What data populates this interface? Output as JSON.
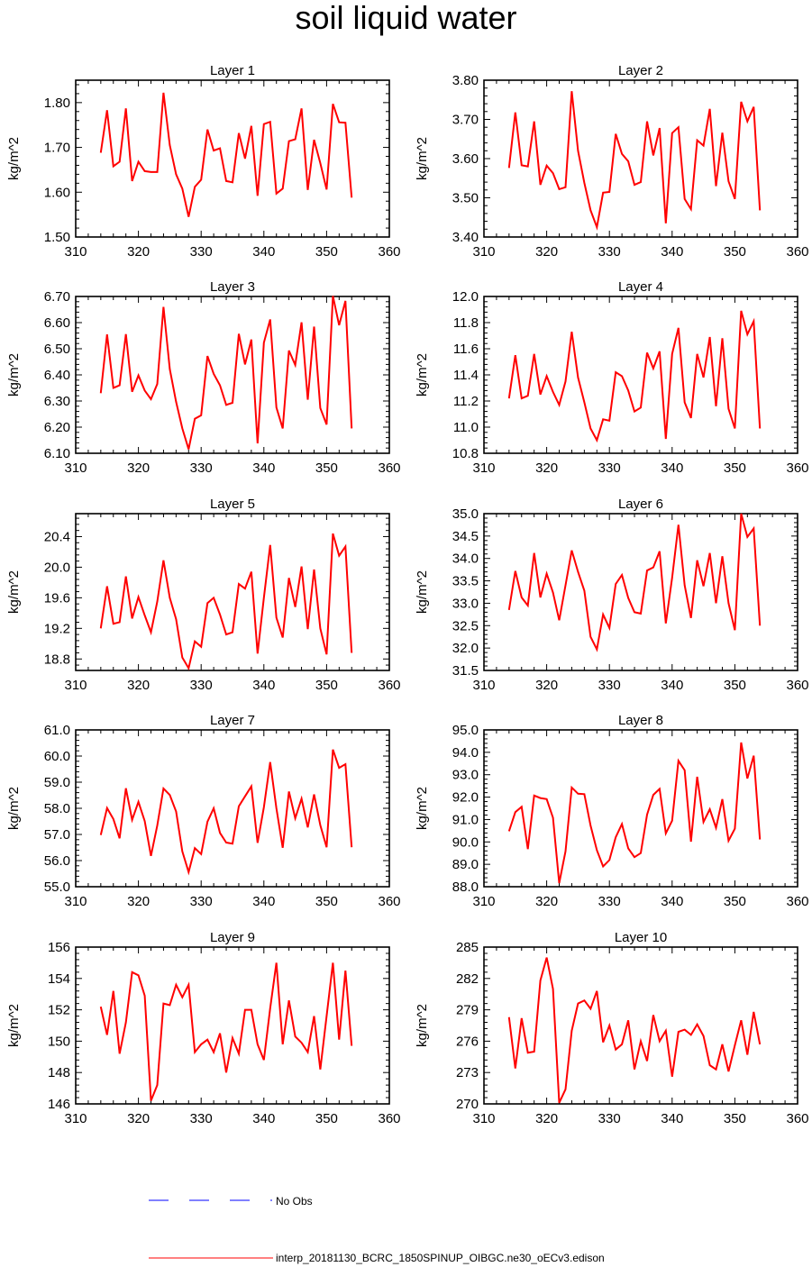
{
  "title": "soil liquid water",
  "colors": {
    "series": "#ff0000",
    "obs": "#0000ff",
    "axis": "#000000"
  },
  "legend": {
    "obs_label": "No Obs",
    "series_label": "interp_20181130_BCRC_1850SPINUP_OIBGC.ne30_oECv3.edison"
  },
  "chart_data": [
    {
      "type": "line",
      "title": "Layer 1",
      "ylabel": "kg/m^2",
      "xlim": [
        310,
        360
      ],
      "xticks": [
        310,
        320,
        330,
        340,
        350,
        360
      ],
      "ylim": [
        1.5,
        1.85
      ],
      "yticks": [
        "1.50",
        "1.60",
        "1.70",
        "1.80"
      ],
      "x": [
        314,
        315,
        316,
        317,
        318,
        319,
        320,
        321,
        322,
        323,
        324,
        325,
        326,
        327,
        328,
        329,
        330,
        331,
        332,
        333,
        334,
        335,
        336,
        337,
        338,
        339,
        340,
        341,
        342,
        343,
        344,
        345,
        346,
        347,
        348,
        349,
        350,
        351,
        352,
        353,
        354
      ],
      "series": [
        {
          "name": "interp_20181130_BCRC_1850SPINUP_OIBGC.ne30_oECv3.edison",
          "values": [
            1.688,
            1.783,
            1.658,
            1.668,
            1.787,
            1.625,
            1.668,
            1.647,
            1.645,
            1.645,
            1.822,
            1.705,
            1.64,
            1.608,
            1.545,
            1.612,
            1.628,
            1.74,
            1.693,
            1.698,
            1.625,
            1.622,
            1.732,
            1.675,
            1.748,
            1.592,
            1.752,
            1.757,
            1.597,
            1.608,
            1.714,
            1.718,
            1.787,
            1.605,
            1.717,
            1.665,
            1.606,
            1.797,
            1.756,
            1.755,
            1.588
          ]
        }
      ]
    },
    {
      "type": "line",
      "title": "Layer 2",
      "ylabel": "kg/m^2",
      "xlim": [
        310,
        360
      ],
      "xticks": [
        310,
        320,
        330,
        340,
        350,
        360
      ],
      "ylim": [
        3.4,
        3.8
      ],
      "yticks": [
        "3.40",
        "3.50",
        "3.60",
        "3.70",
        "3.80"
      ],
      "x": [
        314,
        315,
        316,
        317,
        318,
        319,
        320,
        321,
        322,
        323,
        324,
        325,
        326,
        327,
        328,
        329,
        330,
        331,
        332,
        333,
        334,
        335,
        336,
        337,
        338,
        339,
        340,
        341,
        342,
        343,
        344,
        345,
        346,
        347,
        348,
        349,
        350,
        351,
        352,
        353,
        354
      ],
      "series": [
        {
          "name": "interp_20181130_BCRC_1850SPINUP_OIBGC.ne30_oECv3.edison",
          "values": [
            3.576,
            3.718,
            3.583,
            3.58,
            3.695,
            3.533,
            3.582,
            3.563,
            3.522,
            3.527,
            3.772,
            3.62,
            3.538,
            3.468,
            3.425,
            3.513,
            3.515,
            3.663,
            3.612,
            3.593,
            3.533,
            3.54,
            3.695,
            3.608,
            3.678,
            3.435,
            3.665,
            3.68,
            3.497,
            3.471,
            3.647,
            3.633,
            3.727,
            3.53,
            3.666,
            3.542,
            3.497,
            3.745,
            3.695,
            3.732,
            3.468
          ]
        }
      ]
    },
    {
      "type": "line",
      "title": "Layer 3",
      "ylabel": "kg/m^2",
      "xlim": [
        310,
        360
      ],
      "xticks": [
        310,
        320,
        330,
        340,
        350,
        360
      ],
      "ylim": [
        6.1,
        6.7
      ],
      "yticks": [
        "6.10",
        "6.20",
        "6.30",
        "6.40",
        "6.50",
        "6.60",
        "6.70"
      ],
      "x": [
        314,
        315,
        316,
        317,
        318,
        319,
        320,
        321,
        322,
        323,
        324,
        325,
        326,
        327,
        328,
        329,
        330,
        331,
        332,
        333,
        334,
        335,
        336,
        337,
        338,
        339,
        340,
        341,
        342,
        343,
        344,
        345,
        346,
        347,
        348,
        349,
        350,
        351,
        352,
        353,
        354
      ],
      "series": [
        {
          "name": "interp_20181130_BCRC_1850SPINUP_OIBGC.ne30_oECv3.edison",
          "values": [
            6.33,
            6.555,
            6.35,
            6.36,
            6.556,
            6.335,
            6.398,
            6.34,
            6.307,
            6.365,
            6.66,
            6.422,
            6.297,
            6.195,
            6.115,
            6.232,
            6.245,
            6.472,
            6.404,
            6.36,
            6.285,
            6.293,
            6.557,
            6.44,
            6.535,
            6.138,
            6.523,
            6.612,
            6.275,
            6.195,
            6.493,
            6.438,
            6.601,
            6.305,
            6.585,
            6.273,
            6.21,
            6.702,
            6.59,
            6.683,
            6.195
          ]
        }
      ]
    },
    {
      "type": "line",
      "title": "Layer 4",
      "ylabel": "kg/m^2",
      "xlim": [
        310,
        360
      ],
      "xticks": [
        310,
        320,
        330,
        340,
        350,
        360
      ],
      "ylim": [
        10.8,
        12.0
      ],
      "yticks": [
        "10.8",
        "11.0",
        "11.2",
        "11.4",
        "11.6",
        "11.8",
        "12.0"
      ],
      "x": [
        314,
        315,
        316,
        317,
        318,
        319,
        320,
        321,
        322,
        323,
        324,
        325,
        326,
        327,
        328,
        329,
        330,
        331,
        332,
        333,
        334,
        335,
        336,
        337,
        338,
        339,
        340,
        341,
        342,
        343,
        344,
        345,
        346,
        347,
        348,
        349,
        350,
        351,
        352,
        353,
        354
      ],
      "series": [
        {
          "name": "interp_20181130_BCRC_1850SPINUP_OIBGC.ne30_oECv3.edison",
          "values": [
            11.22,
            11.55,
            11.22,
            11.24,
            11.56,
            11.25,
            11.39,
            11.27,
            11.17,
            11.35,
            11.73,
            11.38,
            11.19,
            10.99,
            10.9,
            11.06,
            11.05,
            11.42,
            11.39,
            11.28,
            11.12,
            11.15,
            11.57,
            11.45,
            11.58,
            10.91,
            11.56,
            11.76,
            11.19,
            11.07,
            11.56,
            11.38,
            11.69,
            11.16,
            11.68,
            11.14,
            10.99,
            11.89,
            11.71,
            11.81,
            10.99
          ]
        }
      ]
    },
    {
      "type": "line",
      "title": "Layer 5",
      "ylabel": "kg/m^2",
      "xlim": [
        310,
        360
      ],
      "xticks": [
        310,
        320,
        330,
        340,
        350,
        360
      ],
      "ylim": [
        18.65,
        20.7
      ],
      "yticks": [
        "18.8",
        "19.2",
        "19.6",
        "20.0",
        "20.4"
      ],
      "ytick_values": [
        18.8,
        19.2,
        19.6,
        20.0,
        20.4
      ],
      "x": [
        314,
        315,
        316,
        317,
        318,
        319,
        320,
        321,
        322,
        323,
        324,
        325,
        326,
        327,
        328,
        329,
        330,
        331,
        332,
        333,
        334,
        335,
        336,
        337,
        338,
        339,
        340,
        341,
        342,
        343,
        344,
        345,
        346,
        347,
        348,
        349,
        350,
        351,
        352,
        353,
        354
      ],
      "series": [
        {
          "name": "interp_20181130_BCRC_1850SPINUP_OIBGC.ne30_oECv3.edison",
          "values": [
            19.2,
            19.75,
            19.26,
            19.28,
            19.88,
            19.33,
            19.61,
            19.37,
            19.15,
            19.55,
            20.09,
            19.6,
            19.32,
            18.82,
            18.68,
            19.03,
            18.96,
            19.53,
            19.6,
            19.38,
            19.12,
            19.15,
            19.78,
            19.72,
            19.94,
            18.87,
            19.6,
            20.29,
            19.34,
            19.08,
            19.86,
            19.48,
            20.01,
            19.19,
            19.97,
            19.2,
            18.86,
            20.44,
            20.15,
            20.27,
            18.88
          ]
        }
      ]
    },
    {
      "type": "line",
      "title": "Layer 6",
      "ylabel": "kg/m^2",
      "xlim": [
        310,
        360
      ],
      "xticks": [
        310,
        320,
        330,
        340,
        350,
        360
      ],
      "ylim": [
        31.5,
        35.0
      ],
      "yticks": [
        "31.5",
        "32.0",
        "32.5",
        "33.0",
        "33.5",
        "34.0",
        "34.5",
        "35.0"
      ],
      "x": [
        314,
        315,
        316,
        317,
        318,
        319,
        320,
        321,
        322,
        323,
        324,
        325,
        326,
        327,
        328,
        329,
        330,
        331,
        332,
        333,
        334,
        335,
        336,
        337,
        338,
        339,
        340,
        341,
        342,
        343,
        344,
        345,
        346,
        347,
        348,
        349,
        350,
        351,
        352,
        353,
        354
      ],
      "series": [
        {
          "name": "interp_20181130_BCRC_1850SPINUP_OIBGC.ne30_oECv3.edison",
          "values": [
            32.85,
            33.72,
            33.13,
            32.95,
            34.12,
            33.13,
            33.66,
            33.24,
            32.62,
            33.4,
            34.18,
            33.7,
            33.28,
            32.25,
            31.97,
            32.75,
            32.45,
            33.43,
            33.63,
            33.12,
            32.8,
            32.77,
            33.73,
            33.8,
            34.16,
            32.55,
            33.57,
            34.75,
            33.4,
            32.67,
            33.96,
            33.38,
            34.12,
            33.0,
            34.05,
            33.0,
            32.4,
            35.0,
            34.48,
            34.67,
            32.5
          ]
        }
      ]
    },
    {
      "type": "line",
      "title": "Layer 7",
      "ylabel": "kg/m^2",
      "xlim": [
        310,
        360
      ],
      "xticks": [
        310,
        320,
        330,
        340,
        350,
        360
      ],
      "ylim": [
        55.0,
        61.0
      ],
      "yticks": [
        "55.0",
        "56.0",
        "57.0",
        "58.0",
        "59.0",
        "60.0",
        "61.0"
      ],
      "x": [
        314,
        315,
        316,
        317,
        318,
        319,
        320,
        321,
        322,
        323,
        324,
        325,
        326,
        327,
        328,
        329,
        330,
        331,
        332,
        333,
        334,
        335,
        336,
        337,
        338,
        339,
        340,
        341,
        342,
        343,
        344,
        345,
        346,
        347,
        348,
        349,
        350,
        351,
        352,
        353,
        354
      ],
      "series": [
        {
          "name": "interp_20181130_BCRC_1850SPINUP_OIBGC.ne30_oECv3.edison",
          "values": [
            56.98,
            58.01,
            57.59,
            56.85,
            58.77,
            57.56,
            58.25,
            57.51,
            56.18,
            57.34,
            58.76,
            58.51,
            57.88,
            56.35,
            55.56,
            56.48,
            56.25,
            57.49,
            58.0,
            57.06,
            56.69,
            56.65,
            58.08,
            58.46,
            58.84,
            56.68,
            58.04,
            59.77,
            58.0,
            56.49,
            58.64,
            57.62,
            58.37,
            57.27,
            58.53,
            57.36,
            56.51,
            60.25,
            59.55,
            59.69,
            56.51
          ]
        }
      ]
    },
    {
      "type": "line",
      "title": "Layer 8",
      "ylabel": "kg/m^2",
      "xlim": [
        310,
        360
      ],
      "xticks": [
        310,
        320,
        330,
        340,
        350,
        360
      ],
      "ylim": [
        88.0,
        95.0
      ],
      "yticks": [
        "88.0",
        "89.0",
        "90.0",
        "91.0",
        "92.0",
        "93.0",
        "94.0",
        "95.0"
      ],
      "x": [
        314,
        315,
        316,
        317,
        318,
        319,
        320,
        321,
        322,
        323,
        324,
        325,
        326,
        327,
        328,
        329,
        330,
        331,
        332,
        333,
        334,
        335,
        336,
        337,
        338,
        339,
        340,
        341,
        342,
        343,
        344,
        345,
        346,
        347,
        348,
        349,
        350,
        351,
        352,
        353,
        354
      ],
      "series": [
        {
          "name": "interp_20181130_BCRC_1850SPINUP_OIBGC.ne30_oECv3.edison",
          "values": [
            90.48,
            91.33,
            91.57,
            89.68,
            92.07,
            91.96,
            91.91,
            91.08,
            88.16,
            89.58,
            92.43,
            92.15,
            92.13,
            90.73,
            89.63,
            88.91,
            89.19,
            90.21,
            90.8,
            89.71,
            89.32,
            89.5,
            91.22,
            92.1,
            92.37,
            90.38,
            90.95,
            93.62,
            93.2,
            90.01,
            92.91,
            90.89,
            91.46,
            90.63,
            91.91,
            90.05,
            90.59,
            94.44,
            92.83,
            93.85,
            90.11
          ]
        }
      ]
    },
    {
      "type": "line",
      "title": "Layer 9",
      "ylabel": "kg/m^2",
      "xlim": [
        310,
        360
      ],
      "xticks": [
        310,
        320,
        330,
        340,
        350,
        360
      ],
      "ylim": [
        146,
        156
      ],
      "yticks": [
        "146",
        "148",
        "150",
        "152",
        "154",
        "156"
      ],
      "x": [
        314,
        315,
        316,
        317,
        318,
        319,
        320,
        321,
        322,
        323,
        324,
        325,
        326,
        327,
        328,
        329,
        330,
        331,
        332,
        333,
        334,
        335,
        336,
        337,
        338,
        339,
        340,
        341,
        342,
        343,
        344,
        345,
        346,
        347,
        348,
        349,
        350,
        351,
        352,
        353,
        354
      ],
      "series": [
        {
          "name": "interp_20181130_BCRC_1850SPINUP_OIBGC.ne30_oECv3.edison",
          "values": [
            152.2,
            150.4,
            153.2,
            149.2,
            151.2,
            154.4,
            154.2,
            152.9,
            146.2,
            147.2,
            152.4,
            152.3,
            153.6,
            152.8,
            153.6,
            149.3,
            149.8,
            150.1,
            149.3,
            150.5,
            148.0,
            150.2,
            149.2,
            152.0,
            152.0,
            149.8,
            148.8,
            152.1,
            155.0,
            149.8,
            152.6,
            150.3,
            149.9,
            149.3,
            151.6,
            148.2,
            151.6,
            155.0,
            150.1,
            154.5,
            149.7
          ]
        }
      ]
    },
    {
      "type": "line",
      "title": "Layer 10",
      "ylabel": "kg/m^2",
      "xlim": [
        310,
        360
      ],
      "xticks": [
        310,
        320,
        330,
        340,
        350,
        360
      ],
      "ylim": [
        270,
        285
      ],
      "yticks": [
        "270",
        "273",
        "276",
        "279",
        "282",
        "285"
      ],
      "x": [
        314,
        315,
        316,
        317,
        318,
        319,
        320,
        321,
        322,
        323,
        324,
        325,
        326,
        327,
        328,
        329,
        330,
        331,
        332,
        333,
        334,
        335,
        336,
        337,
        338,
        339,
        340,
        341,
        342,
        343,
        344,
        345,
        346,
        347,
        348,
        349,
        350,
        351,
        352,
        353,
        354
      ],
      "series": [
        {
          "name": "interp_20181130_BCRC_1850SPINUP_OIBGC.ne30_oECv3.edison",
          "values": [
            278.3,
            273.4,
            278.2,
            274.9,
            275.0,
            281.8,
            284.0,
            281.0,
            270.1,
            271.4,
            277.0,
            279.6,
            279.9,
            279.1,
            280.8,
            275.9,
            277.5,
            275.2,
            275.7,
            278.0,
            273.3,
            276.0,
            274.1,
            278.5,
            276.0,
            277.0,
            272.6,
            276.9,
            277.1,
            276.6,
            277.6,
            276.5,
            273.7,
            273.3,
            275.7,
            273.1,
            275.6,
            278.0,
            274.7,
            278.8,
            275.7
          ]
        }
      ]
    }
  ]
}
